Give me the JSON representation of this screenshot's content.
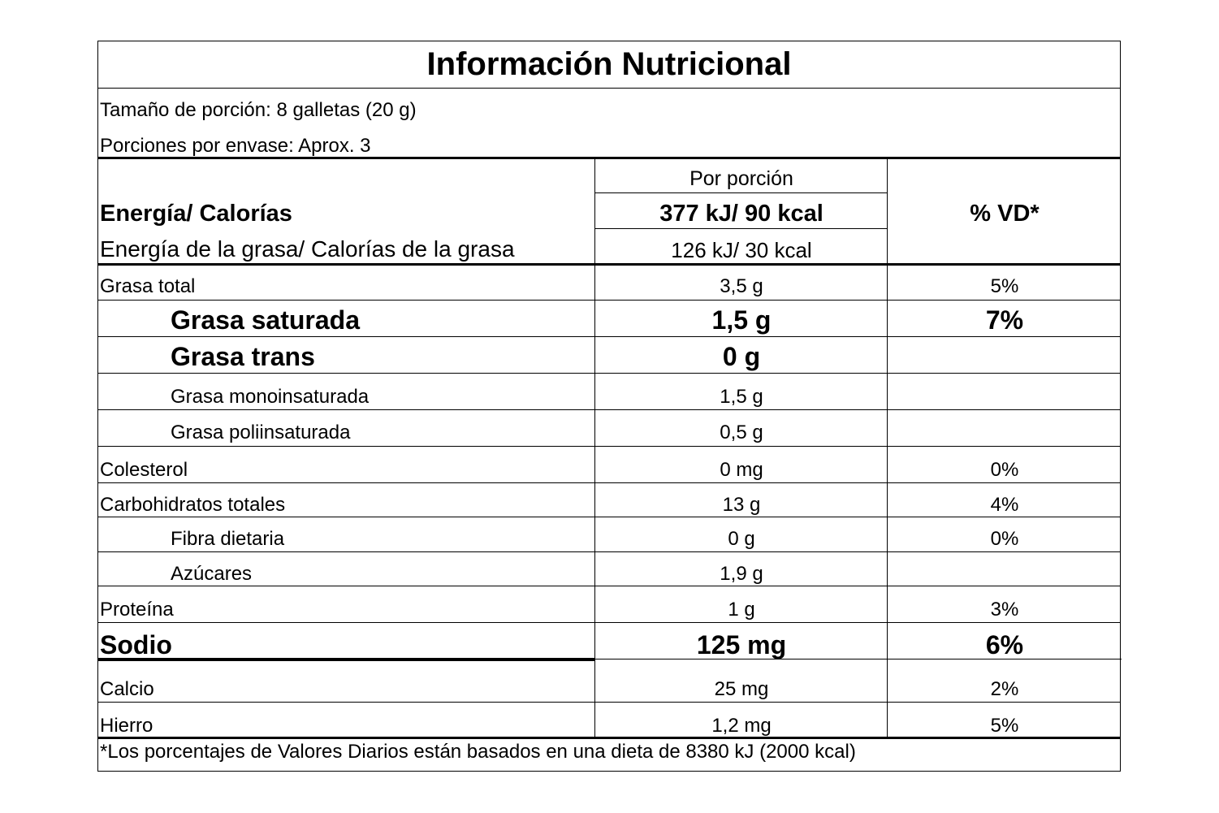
{
  "title": "Información Nutricional",
  "serving": {
    "size": "Tamaño de porción: 8 galletas (20 g)",
    "per_container": "Porciones por envase: Aprox. 3"
  },
  "header": {
    "per_serving": "Por porción",
    "energy_label": "Energía/ Calorías",
    "energy_value": "377 kJ/ 90 kcal",
    "fat_energy_label": "Energía de la grasa/ Calorías de la grasa",
    "fat_energy_value": "126 kJ/ 30 kcal",
    "dv_header": "% VD*"
  },
  "rows": [
    {
      "name": "Grasa total",
      "amount": "3,5 g",
      "dv": "5%"
    },
    {
      "name": "Grasa saturada",
      "amount": "1,5 g",
      "dv": "7%"
    },
    {
      "name": "Grasa trans",
      "amount": "0 g",
      "dv": ""
    },
    {
      "name": "Grasa monoinsaturada",
      "amount": "1,5 g",
      "dv": ""
    },
    {
      "name": "Grasa poliinsaturada",
      "amount": "0,5 g",
      "dv": ""
    },
    {
      "name": "Colesterol",
      "amount": "0 mg",
      "dv": "0%"
    },
    {
      "name": "Carbohidratos totales",
      "amount": "13 g",
      "dv": "4%"
    },
    {
      "name": "Fibra dietaria",
      "amount": "0 g",
      "dv": "0%"
    },
    {
      "name": "Azúcares",
      "amount": "1,9 g",
      "dv": ""
    },
    {
      "name": "Proteína",
      "amount": "1 g",
      "dv": "3%"
    },
    {
      "name": "Sodio",
      "amount": "125 mg",
      "dv": "6%"
    },
    {
      "name": "Calcio",
      "amount": "25 mg",
      "dv": "2%"
    },
    {
      "name": "Hierro",
      "amount": "1,2 mg",
      "dv": "5%"
    }
  ],
  "footnote": "*Los porcentajes de Valores Diarios están basados en una dieta de 8380 kJ (2000 kcal)"
}
